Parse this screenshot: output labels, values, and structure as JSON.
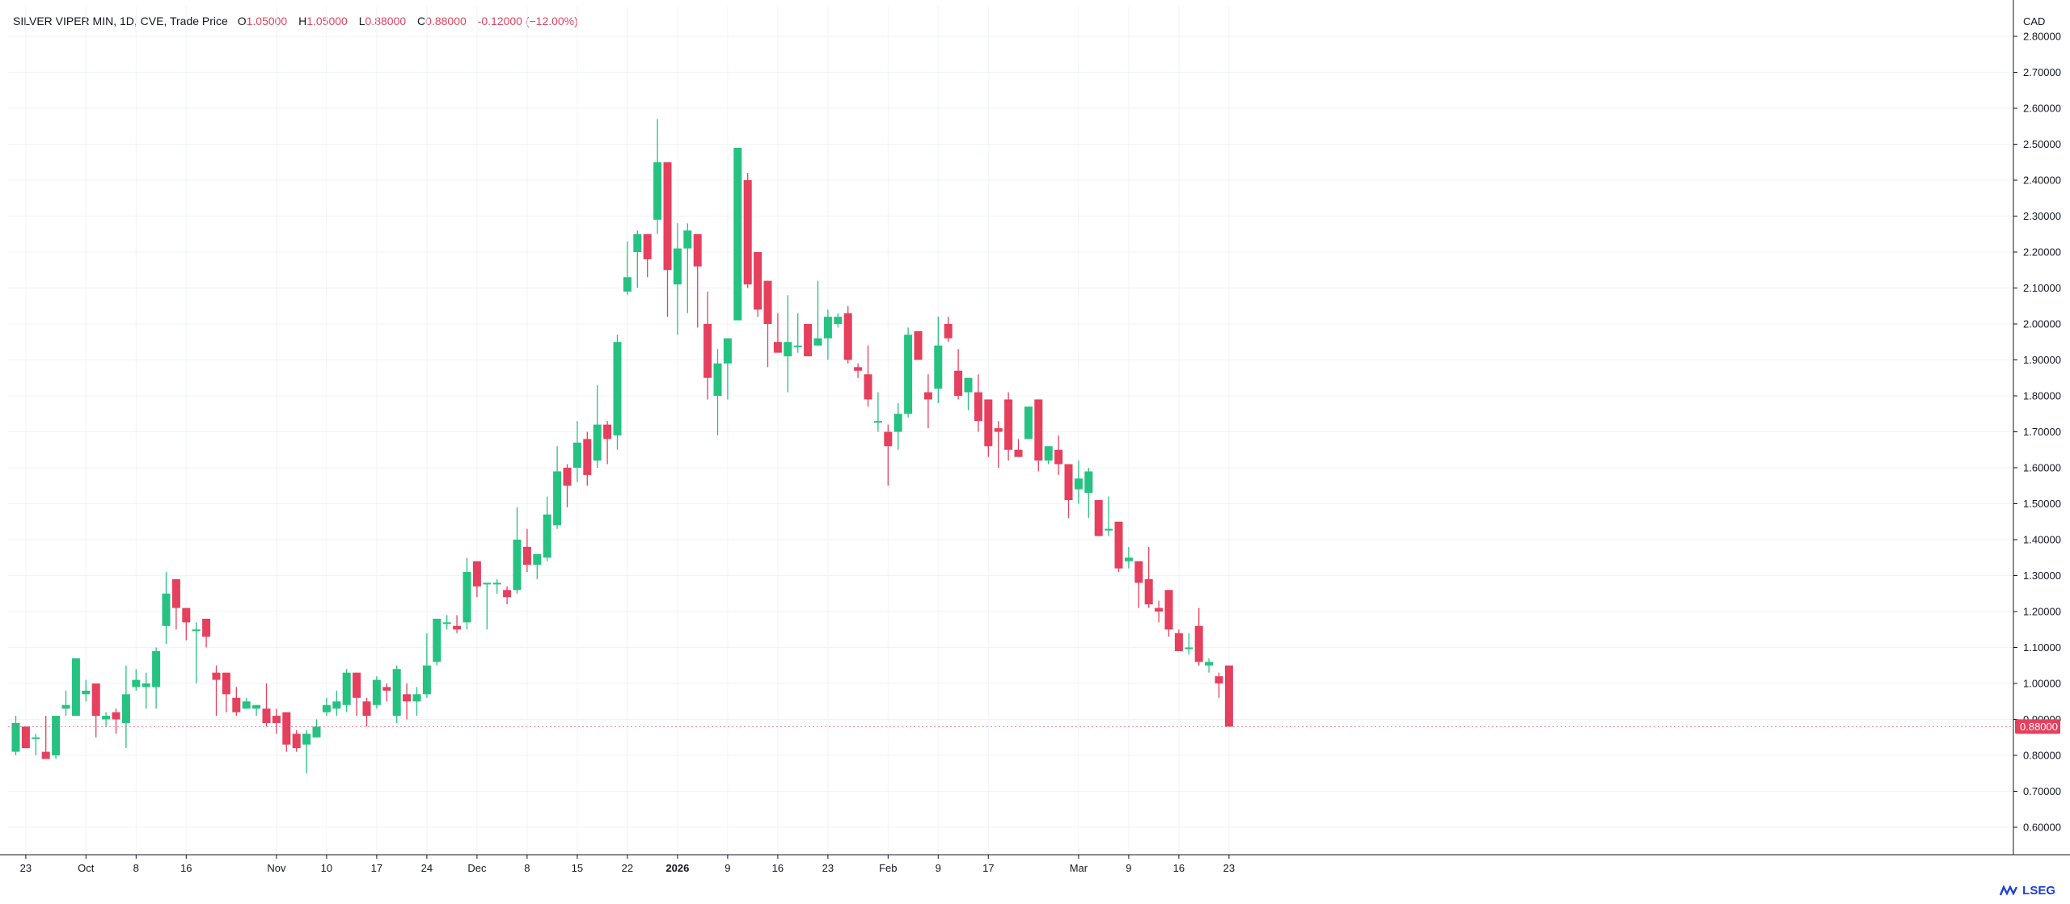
{
  "legend": {
    "title": "SILVER VIPER MIN, 1D, CVE, Trade Price",
    "open_key": "O",
    "open": "1.05000",
    "high_key": "H",
    "high": "1.05000",
    "low_key": "L",
    "low": "0.88000",
    "close_key": "C",
    "close": "0.88000",
    "change": "-0.12000 (−12.00%)"
  },
  "currency": "CAD",
  "brand": {
    "name": "LSEG",
    "icon": "lseg-logo-icon"
  },
  "colors": {
    "up": "#26c281",
    "down": "#e5405e",
    "grid": "#f0f3fa",
    "axis": "#131722",
    "last_price_bg": "#e5405e"
  },
  "chart_data": {
    "type": "candlestick",
    "title": "SILVER VIPER MIN, 1D, CVE, Trade Price",
    "currency": "CAD",
    "ylim": [
      0.55,
      2.85
    ],
    "y_ticks": [
      "0.60000",
      "0.70000",
      "0.80000",
      "0.90000",
      "1.00000",
      "1.10000",
      "1.20000",
      "1.30000",
      "1.40000",
      "1.50000",
      "1.60000",
      "1.70000",
      "1.80000",
      "1.90000",
      "2.00000",
      "2.10000",
      "2.20000",
      "2.30000",
      "2.40000",
      "2.50000",
      "2.60000",
      "2.70000",
      "2.80000"
    ],
    "x_ticks": [
      {
        "label": "23",
        "index": 1
      },
      {
        "label": "Oct",
        "index": 7
      },
      {
        "label": "8",
        "index": 12
      },
      {
        "label": "16",
        "index": 17
      },
      {
        "label": "Nov",
        "index": 26
      },
      {
        "label": "10",
        "index": 31
      },
      {
        "label": "17",
        "index": 36
      },
      {
        "label": "24",
        "index": 41
      },
      {
        "label": "Dec",
        "index": 46
      },
      {
        "label": "8",
        "index": 51
      },
      {
        "label": "15",
        "index": 56
      },
      {
        "label": "22",
        "index": 61
      },
      {
        "label": "2026",
        "index": 66
      },
      {
        "label": "9",
        "index": 71
      },
      {
        "label": "16",
        "index": 76
      },
      {
        "label": "23",
        "index": 81
      },
      {
        "label": "Feb",
        "index": 87
      },
      {
        "label": "9",
        "index": 92
      },
      {
        "label": "17",
        "index": 97
      },
      {
        "label": "Mar",
        "index": 106
      },
      {
        "label": "9",
        "index": 111
      },
      {
        "label": "16",
        "index": 116
      },
      {
        "label": "23",
        "index": 121
      }
    ],
    "last_price": "0.88000",
    "ohlc": [
      [
        0.81,
        0.91,
        0.8,
        0.89
      ],
      [
        0.88,
        0.88,
        0.82,
        0.82
      ],
      [
        0.85,
        0.86,
        0.8,
        0.85
      ],
      [
        0.81,
        0.91,
        0.79,
        0.79
      ],
      [
        0.8,
        0.91,
        0.79,
        0.91
      ],
      [
        0.93,
        0.98,
        0.91,
        0.94
      ],
      [
        0.91,
        1.07,
        0.91,
        1.07
      ],
      [
        0.97,
        1.01,
        0.95,
        0.98
      ],
      [
        1.0,
        1.0,
        0.85,
        0.91
      ],
      [
        0.9,
        0.92,
        0.88,
        0.91
      ],
      [
        0.92,
        0.93,
        0.86,
        0.9
      ],
      [
        0.89,
        1.05,
        0.82,
        0.97
      ],
      [
        0.99,
        1.04,
        0.98,
        1.01
      ],
      [
        0.99,
        1.03,
        0.93,
        1.0
      ],
      [
        0.99,
        1.1,
        0.93,
        1.09
      ],
      [
        1.16,
        1.31,
        1.11,
        1.25
      ],
      [
        1.29,
        1.29,
        1.15,
        1.21
      ],
      [
        1.21,
        1.21,
        1.12,
        1.17
      ],
      [
        1.15,
        1.17,
        1.0,
        1.15
      ],
      [
        1.18,
        1.18,
        1.1,
        1.13
      ],
      [
        1.03,
        1.05,
        0.91,
        1.01
      ],
      [
        1.03,
        1.03,
        0.92,
        0.97
      ],
      [
        0.96,
        0.99,
        0.91,
        0.92
      ],
      [
        0.93,
        0.96,
        0.93,
        0.95
      ],
      [
        0.93,
        0.94,
        0.91,
        0.94
      ],
      [
        0.93,
        1.0,
        0.88,
        0.89
      ],
      [
        0.91,
        0.93,
        0.86,
        0.89
      ],
      [
        0.92,
        0.92,
        0.81,
        0.83
      ],
      [
        0.86,
        0.87,
        0.81,
        0.82
      ],
      [
        0.83,
        0.87,
        0.75,
        0.86
      ],
      [
        0.85,
        0.9,
        0.85,
        0.88
      ],
      [
        0.92,
        0.96,
        0.91,
        0.94
      ],
      [
        0.93,
        0.98,
        0.91,
        0.95
      ],
      [
        0.94,
        1.04,
        0.92,
        1.03
      ],
      [
        1.03,
        1.03,
        0.91,
        0.96
      ],
      [
        0.95,
        0.96,
        0.88,
        0.91
      ],
      [
        0.94,
        1.02,
        0.93,
        1.01
      ],
      [
        0.99,
        1.0,
        0.95,
        0.98
      ],
      [
        0.91,
        1.05,
        0.89,
        1.04
      ],
      [
        0.97,
        1.0,
        0.9,
        0.95
      ],
      [
        0.95,
        0.99,
        0.91,
        0.97
      ],
      [
        0.97,
        1.14,
        0.96,
        1.05
      ],
      [
        1.06,
        1.18,
        1.05,
        1.18
      ],
      [
        1.17,
        1.19,
        1.15,
        1.17
      ],
      [
        1.16,
        1.19,
        1.14,
        1.15
      ],
      [
        1.17,
        1.35,
        1.15,
        1.31
      ],
      [
        1.34,
        1.34,
        1.24,
        1.27
      ],
      [
        1.28,
        1.28,
        1.15,
        1.28
      ],
      [
        1.28,
        1.29,
        1.25,
        1.28
      ],
      [
        1.26,
        1.27,
        1.22,
        1.24
      ],
      [
        1.26,
        1.49,
        1.25,
        1.4
      ],
      [
        1.38,
        1.43,
        1.31,
        1.33
      ],
      [
        1.33,
        1.36,
        1.29,
        1.36
      ],
      [
        1.35,
        1.52,
        1.34,
        1.47
      ],
      [
        1.44,
        1.66,
        1.43,
        1.59
      ],
      [
        1.6,
        1.61,
        1.49,
        1.55
      ],
      [
        1.6,
        1.73,
        1.56,
        1.67
      ],
      [
        1.68,
        1.7,
        1.55,
        1.58
      ],
      [
        1.62,
        1.83,
        1.6,
        1.72
      ],
      [
        1.72,
        1.73,
        1.61,
        1.68
      ],
      [
        1.69,
        1.97,
        1.65,
        1.95
      ],
      [
        2.09,
        2.23,
        2.08,
        2.13
      ],
      [
        2.2,
        2.26,
        2.1,
        2.25
      ],
      [
        2.25,
        2.25,
        2.13,
        2.18
      ],
      [
        2.29,
        2.57,
        2.25,
        2.45
      ],
      [
        2.45,
        2.45,
        2.02,
        2.15
      ],
      [
        2.11,
        2.28,
        1.97,
        2.21
      ],
      [
        2.21,
        2.28,
        2.03,
        2.26
      ],
      [
        2.25,
        2.25,
        1.99,
        2.16
      ],
      [
        2.0,
        2.09,
        1.79,
        1.85
      ],
      [
        1.8,
        1.93,
        1.69,
        1.89
      ],
      [
        1.89,
        1.96,
        1.79,
        1.96
      ],
      [
        2.01,
        2.49,
        2.01,
        2.49
      ],
      [
        2.4,
        2.42,
        2.1,
        2.11
      ],
      [
        2.2,
        2.2,
        2.02,
        2.04
      ],
      [
        2.12,
        2.12,
        1.88,
        2.0
      ],
      [
        1.95,
        2.03,
        1.92,
        1.92
      ],
      [
        1.91,
        2.08,
        1.81,
        1.95
      ],
      [
        1.94,
        2.03,
        1.92,
        1.94
      ],
      [
        2.0,
        2.0,
        1.91,
        1.91
      ],
      [
        1.94,
        2.12,
        1.94,
        1.96
      ],
      [
        1.96,
        2.04,
        1.9,
        2.02
      ],
      [
        2.0,
        2.03,
        1.99,
        2.02
      ],
      [
        2.03,
        2.05,
        1.89,
        1.9
      ],
      [
        1.88,
        1.89,
        1.85,
        1.87
      ],
      [
        1.86,
        1.94,
        1.77,
        1.79
      ],
      [
        1.73,
        1.81,
        1.7,
        1.73
      ],
      [
        1.7,
        1.72,
        1.55,
        1.66
      ],
      [
        1.7,
        1.78,
        1.65,
        1.75
      ],
      [
        1.75,
        1.99,
        1.74,
        1.97
      ],
      [
        1.98,
        1.98,
        1.9,
        1.9
      ],
      [
        1.81,
        1.86,
        1.71,
        1.79
      ],
      [
        1.82,
        2.02,
        1.78,
        1.94
      ],
      [
        2.0,
        2.02,
        1.95,
        1.96
      ],
      [
        1.87,
        1.93,
        1.79,
        1.8
      ],
      [
        1.81,
        1.85,
        1.76,
        1.85
      ],
      [
        1.81,
        1.86,
        1.7,
        1.73
      ],
      [
        1.79,
        1.79,
        1.63,
        1.66
      ],
      [
        1.71,
        1.73,
        1.6,
        1.7
      ],
      [
        1.79,
        1.81,
        1.62,
        1.65
      ],
      [
        1.65,
        1.68,
        1.63,
        1.63
      ],
      [
        1.68,
        1.77,
        1.68,
        1.77
      ],
      [
        1.79,
        1.79,
        1.59,
        1.62
      ],
      [
        1.62,
        1.66,
        1.61,
        1.66
      ],
      [
        1.65,
        1.69,
        1.58,
        1.61
      ],
      [
        1.61,
        1.61,
        1.46,
        1.51
      ],
      [
        1.54,
        1.62,
        1.5,
        1.57
      ],
      [
        1.53,
        1.6,
        1.46,
        1.59
      ],
      [
        1.51,
        1.51,
        1.41,
        1.41
      ],
      [
        1.43,
        1.52,
        1.41,
        1.43
      ],
      [
        1.45,
        1.45,
        1.31,
        1.32
      ],
      [
        1.34,
        1.38,
        1.32,
        1.35
      ],
      [
        1.34,
        1.34,
        1.21,
        1.28
      ],
      [
        1.29,
        1.38,
        1.21,
        1.22
      ],
      [
        1.21,
        1.23,
        1.17,
        1.2
      ],
      [
        1.26,
        1.26,
        1.13,
        1.15
      ],
      [
        1.14,
        1.15,
        1.09,
        1.09
      ],
      [
        1.1,
        1.14,
        1.08,
        1.1
      ],
      [
        1.16,
        1.21,
        1.05,
        1.06
      ],
      [
        1.05,
        1.07,
        1.03,
        1.06
      ],
      [
        1.02,
        1.03,
        0.96,
        1.0
      ],
      [
        1.05,
        1.05,
        0.88,
        0.88
      ]
    ]
  }
}
